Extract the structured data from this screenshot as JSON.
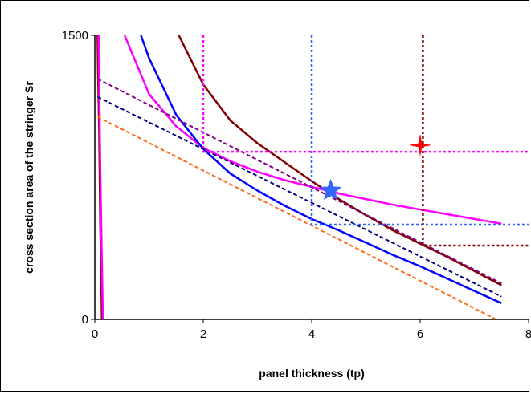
{
  "chart_data": {
    "type": "line",
    "title": "",
    "xlabel": "panel thickness (tp)",
    "ylabel": "cross section area of the stringer Sr",
    "xlim": [
      0,
      8
    ],
    "ylim": [
      0,
      1500
    ],
    "x_ticks": [
      "0",
      "2",
      "4",
      "6",
      "8"
    ],
    "y_ticks": [
      "0",
      "1500"
    ],
    "grid": false,
    "legend": "none",
    "series": [
      {
        "color": "#800000",
        "style": "solid",
        "width": 2.5,
        "points": [
          [
            0.05,
            1500
          ],
          [
            0.06,
            1300
          ],
          [
            0.08,
            1000
          ],
          [
            0.1,
            500
          ],
          [
            0.12,
            200
          ],
          [
            0.13,
            0
          ]
        ]
      },
      {
        "color": "#FF00FF",
        "style": "solid",
        "width": 2.5,
        "points": [
          [
            0.07,
            1500
          ],
          [
            0.1,
            800
          ],
          [
            0.13,
            300
          ],
          [
            0.15,
            0
          ]
        ]
      },
      {
        "color": "#800000",
        "style": "solid",
        "width": 2.5,
        "points": [
          [
            1.55,
            1500
          ],
          [
            2,
            1240
          ],
          [
            2.5,
            1050
          ],
          [
            3,
            930
          ],
          [
            3.5,
            830
          ],
          [
            4,
            730
          ],
          [
            4.5,
            635
          ],
          [
            5,
            550
          ],
          [
            5.5,
            470
          ],
          [
            6,
            400
          ],
          [
            6.5,
            330
          ],
          [
            7,
            255
          ],
          [
            7.5,
            180
          ]
        ]
      },
      {
        "color": "#FF00FF",
        "style": "solid",
        "width": 2.5,
        "points": [
          [
            0.55,
            1500
          ],
          [
            1,
            1190
          ],
          [
            1.5,
            1020
          ],
          [
            2,
            905
          ],
          [
            2.5,
            835
          ],
          [
            3,
            780
          ],
          [
            3.5,
            735
          ],
          [
            4,
            700
          ],
          [
            4.5,
            665
          ],
          [
            5,
            635
          ],
          [
            5.5,
            605
          ],
          [
            6,
            580
          ],
          [
            6.5,
            555
          ],
          [
            7,
            530
          ],
          [
            7.5,
            505
          ]
        ]
      },
      {
        "color": "#0000FF",
        "style": "solid",
        "width": 2.5,
        "points": [
          [
            0.85,
            1500
          ],
          [
            1,
            1380
          ],
          [
            1.5,
            1080
          ],
          [
            2,
            900
          ],
          [
            2.5,
            770
          ],
          [
            3,
            680
          ],
          [
            3.5,
            600
          ],
          [
            4,
            530
          ],
          [
            4.5,
            470
          ],
          [
            5,
            405
          ],
          [
            5.5,
            340
          ],
          [
            6,
            280
          ],
          [
            6.5,
            215
          ],
          [
            7,
            150
          ],
          [
            7.5,
            85
          ]
        ]
      },
      {
        "color": "#800080",
        "style": "dashed",
        "width": 2,
        "points": [
          [
            0.05,
            1270
          ],
          [
            7.5,
            190
          ]
        ]
      },
      {
        "color": "#000080",
        "style": "dashed",
        "width": 2,
        "points": [
          [
            0.05,
            1175
          ],
          [
            7.5,
            120
          ]
        ]
      },
      {
        "color": "#FF6A1A",
        "style": "dashed",
        "width": 2,
        "points": [
          [
            0.05,
            1070
          ],
          [
            7.4,
            0
          ]
        ]
      },
      {
        "color": "#FF00FF",
        "style": "dotted",
        "width": 2.5,
        "points": [
          [
            2,
            1500
          ],
          [
            2,
            885
          ],
          [
            8,
            885
          ]
        ]
      },
      {
        "color": "#3366FF",
        "style": "dotted",
        "width": 2.5,
        "points": [
          [
            4,
            1500
          ],
          [
            4,
            500
          ],
          [
            8,
            500
          ]
        ]
      },
      {
        "color": "#800000",
        "style": "dotted",
        "width": 2.5,
        "points": [
          [
            6.05,
            1500
          ],
          [
            6.05,
            390
          ],
          [
            8,
            390
          ]
        ]
      }
    ],
    "markers": [
      {
        "shape": "star4",
        "x": 6.0,
        "y": 920,
        "color": "#FF0000"
      },
      {
        "shape": "star5",
        "x": 4.35,
        "y": 680,
        "color": "#3366FF"
      }
    ]
  }
}
